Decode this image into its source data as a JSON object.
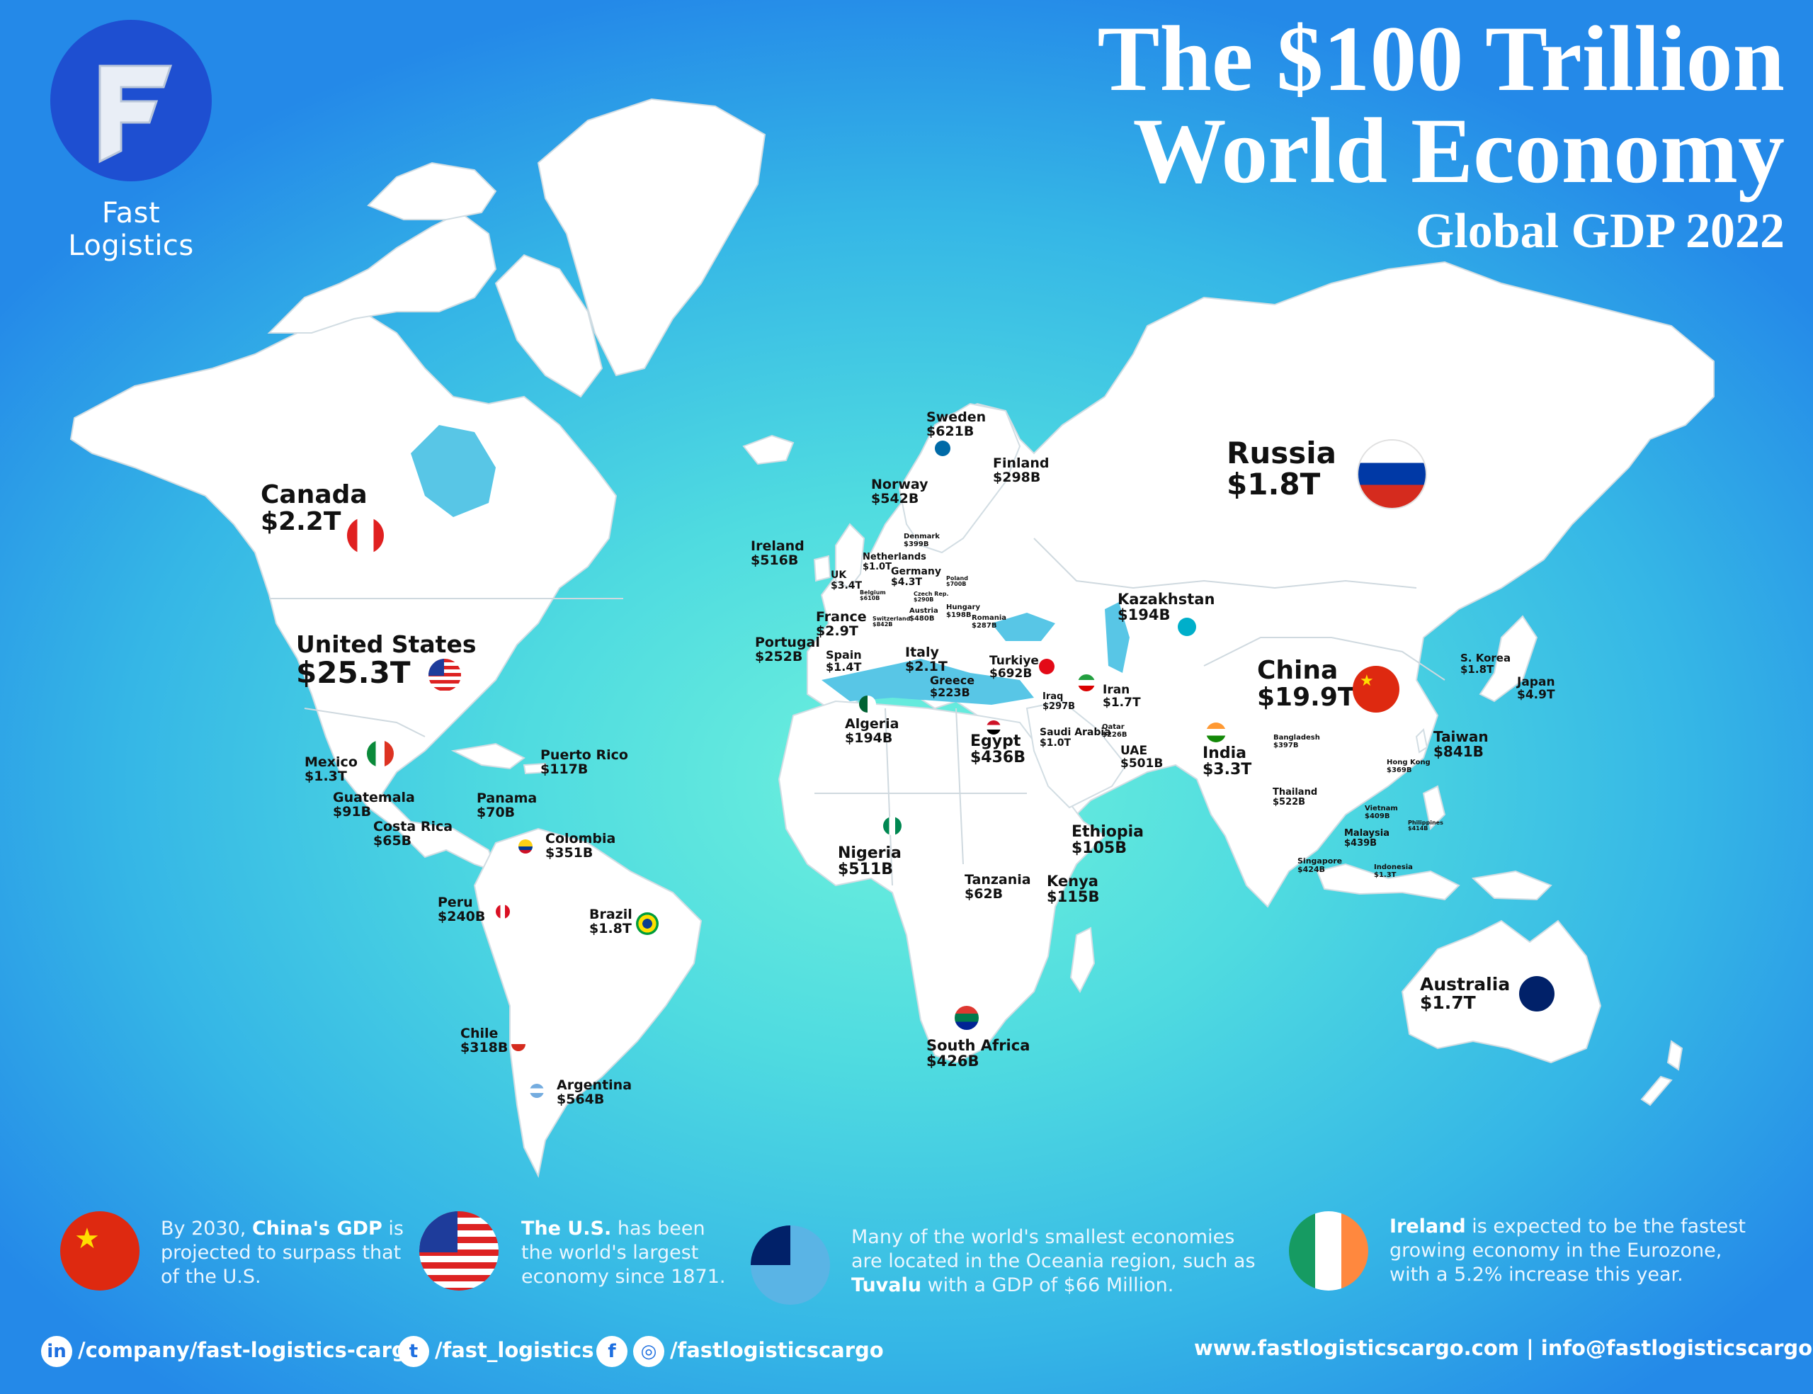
{
  "brand": {
    "name": "Fast Logistics",
    "logo_letter": "F"
  },
  "title": {
    "line1": "The $100 Trillion",
    "line2": "World Economy",
    "subtitle": "Global GDP 2022"
  },
  "countries": {
    "canada": {
      "name": "Canada",
      "gdp": "$2.2T"
    },
    "united_states": {
      "name": "United States",
      "gdp": "$25.3T"
    },
    "mexico": {
      "name": "Mexico",
      "gdp": "$1.3T"
    },
    "guatemala": {
      "name": "Guatemala",
      "gdp": "$91B"
    },
    "costa_rica": {
      "name": "Costa Rica",
      "gdp": "$65B"
    },
    "panama": {
      "name": "Panama",
      "gdp": "$70B"
    },
    "puerto_rico": {
      "name": "Puerto Rico",
      "gdp": "$117B"
    },
    "colombia": {
      "name": "Colombia",
      "gdp": "$351B"
    },
    "peru": {
      "name": "Peru",
      "gdp": "$240B"
    },
    "brazil": {
      "name": "Brazil",
      "gdp": "$1.8T"
    },
    "chile": {
      "name": "Chile",
      "gdp": "$318B"
    },
    "argentina": {
      "name": "Argentina",
      "gdp": "$564B"
    },
    "sweden": {
      "name": "Sweden",
      "gdp": "$621B"
    },
    "finland": {
      "name": "Finland",
      "gdp": "$298B"
    },
    "norway": {
      "name": "Norway",
      "gdp": "$542B"
    },
    "ireland": {
      "name": "Ireland",
      "gdp": "$516B"
    },
    "denmark": {
      "name": "Denmark",
      "gdp": "$399B"
    },
    "netherlands": {
      "name": "Netherlands",
      "gdp": "$1.0T"
    },
    "uk": {
      "name": "UK",
      "gdp": "$3.4T"
    },
    "germany": {
      "name": "Germany",
      "gdp": "$4.3T"
    },
    "belgium": {
      "name": "Belgium",
      "gdp": "$610B"
    },
    "poland": {
      "name": "Poland",
      "gdp": "$700B"
    },
    "czech": {
      "name": "Czech Rep.",
      "gdp": "$290B"
    },
    "austria": {
      "name": "Austria",
      "gdp": "$480B"
    },
    "hungary": {
      "name": "Hungary",
      "gdp": "$198B"
    },
    "switzerland": {
      "name": "Switzerland",
      "gdp": "$842B"
    },
    "romania": {
      "name": "Romania",
      "gdp": "$287B"
    },
    "france": {
      "name": "France",
      "gdp": "$2.9T"
    },
    "portugal": {
      "name": "Portugal",
      "gdp": "$252B"
    },
    "spain": {
      "name": "Spain",
      "gdp": "$1.4T"
    },
    "italy": {
      "name": "Italy",
      "gdp": "$2.1T"
    },
    "greece": {
      "name": "Greece",
      "gdp": "$223B"
    },
    "turkiye": {
      "name": "Turkiye",
      "gdp": "$692B"
    },
    "iraq": {
      "name": "Iraq",
      "gdp": "$297B"
    },
    "iran": {
      "name": "Iran",
      "gdp": "$1.7T"
    },
    "qatar": {
      "name": "Qatar",
      "gdp": "$226B"
    },
    "saudi_arabia": {
      "name": "Saudi Arabia",
      "gdp": "$1.0T"
    },
    "uae": {
      "name": "UAE",
      "gdp": "$501B"
    },
    "algeria": {
      "name": "Algeria",
      "gdp": "$194B"
    },
    "egypt": {
      "name": "Egypt",
      "gdp": "$436B"
    },
    "nigeria": {
      "name": "Nigeria",
      "gdp": "$511B"
    },
    "ethiopia": {
      "name": "Ethiopia",
      "gdp": "$105B"
    },
    "tanzania": {
      "name": "Tanzania",
      "gdp": "$62B"
    },
    "kenya": {
      "name": "Kenya",
      "gdp": "$115B"
    },
    "south_africa": {
      "name": "South Africa",
      "gdp": "$426B"
    },
    "russia": {
      "name": "Russia",
      "gdp": "$1.8T"
    },
    "kazakhstan": {
      "name": "Kazakhstan",
      "gdp": "$194B"
    },
    "china": {
      "name": "China",
      "gdp": "$19.9T"
    },
    "india": {
      "name": "India",
      "gdp": "$3.3T"
    },
    "bangladesh": {
      "name": "Bangladesh",
      "gdp": "$397B"
    },
    "s_korea": {
      "name": "S. Korea",
      "gdp": "$1.8T"
    },
    "japan": {
      "name": "Japan",
      "gdp": "$4.9T"
    },
    "taiwan": {
      "name": "Taiwan",
      "gdp": "$841B"
    },
    "hong_kong": {
      "name": "Hong Kong",
      "gdp": "$369B"
    },
    "thailand": {
      "name": "Thailand",
      "gdp": "$522B"
    },
    "vietnam": {
      "name": "Vietnam",
      "gdp": "$409B"
    },
    "philippines": {
      "name": "Philippines",
      "gdp": "$414B"
    },
    "malaysia": {
      "name": "Malaysia",
      "gdp": "$439B"
    },
    "singapore": {
      "name": "Singapore",
      "gdp": "$424B"
    },
    "indonesia": {
      "name": "Indonesia",
      "gdp": "$1.3T"
    },
    "australia": {
      "name": "Australia",
      "gdp": "$1.7T"
    }
  },
  "facts": {
    "china": {
      "pre": "By 2030, ",
      "bold": "China's GDP",
      "post": " is projected to surpass that of the U.S."
    },
    "us": {
      "bold": "The U.S.",
      "post": " has been the world's largest economy since 1871."
    },
    "tuvalu": {
      "pre": "Many of the world's smallest economies are located in the Oceania region, such as ",
      "bold": "Tuvalu",
      "post": " with a GDP of $66 Million."
    },
    "ireland": {
      "bold": "Ireland",
      "post": " is expected to be the fastest growing economy in the Eurozone, with a 5.2% increase this year."
    }
  },
  "footer": {
    "linkedin": "/company/fast-logistics-cargo",
    "twitter": "/fast_logistics",
    "instagram": "/fastlogisticscargo",
    "contact": "www.fastlogisticscargo.com | info@fastlogisticscargo.com",
    "icons": {
      "linkedin": "linkedin-icon",
      "twitter": "twitter-icon",
      "facebook": "facebook-icon",
      "instagram": "instagram-icon"
    }
  },
  "colors": {
    "ocean_center": "#6ef1dc",
    "ocean_edge": "#2489e8",
    "land": "#ffffff",
    "logo": "#1e4fd1"
  }
}
